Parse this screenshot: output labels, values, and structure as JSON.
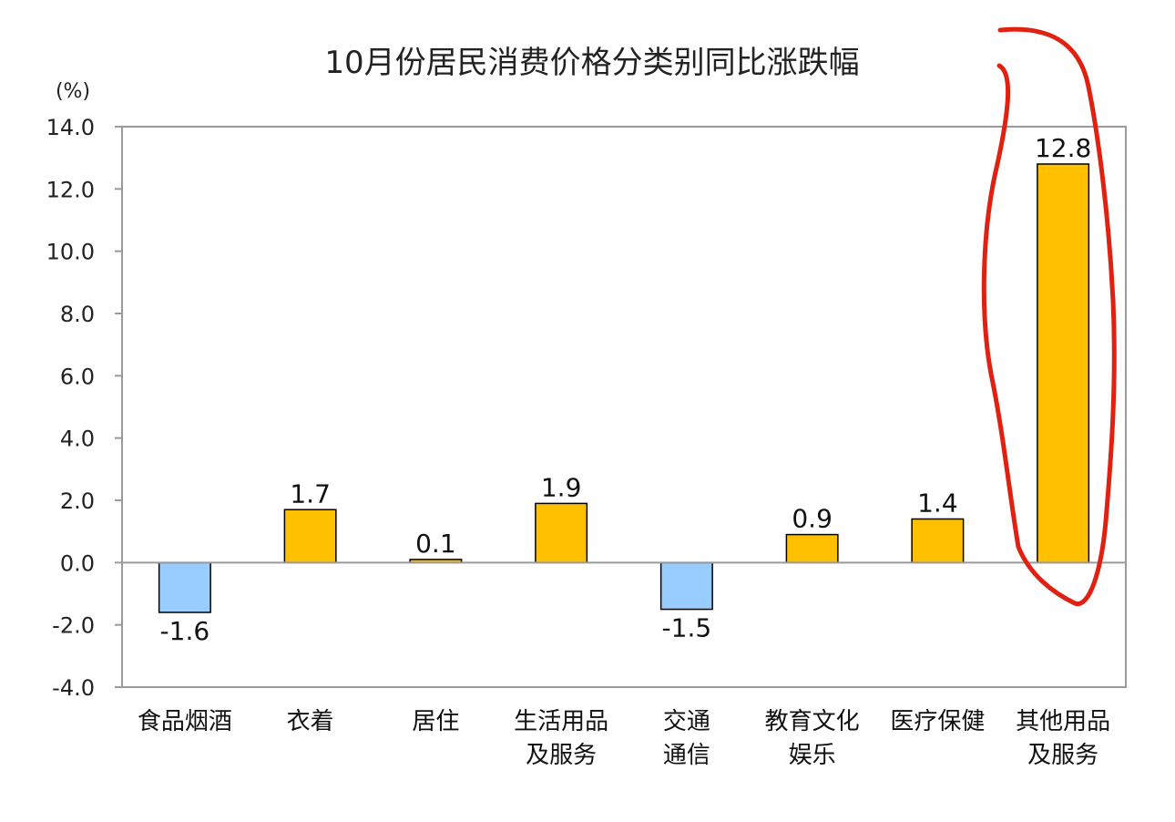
{
  "chart_data": {
    "type": "bar",
    "title": "10月份居民消费价格分类别同比涨跌幅",
    "unit_label": "(%)",
    "ylim": [
      -4.0,
      14.0
    ],
    "y_ticks": [
      "14.0",
      "12.0",
      "10.0",
      "8.0",
      "6.0",
      "4.0",
      "2.0",
      "0.0",
      "-2.0",
      "-4.0"
    ],
    "grid": false,
    "categories": [
      [
        "食品烟酒"
      ],
      [
        "衣着"
      ],
      [
        "居住"
      ],
      [
        "生活用品",
        "及服务"
      ],
      [
        "交通",
        "通信"
      ],
      [
        "教育文化",
        "娱乐"
      ],
      [
        "医疗保健"
      ],
      [
        "其他用品",
        "及服务"
      ]
    ],
    "values": [
      -1.6,
      1.7,
      0.1,
      1.9,
      -1.5,
      0.9,
      1.4,
      12.8
    ],
    "value_labels": [
      "-1.6",
      "1.7",
      "0.1",
      "1.9",
      "-1.5",
      "0.9",
      "1.4",
      "12.8"
    ],
    "colors": {
      "positive": "#FFC000",
      "negative": "#99CCFF",
      "outline": "#000000",
      "annotation": "#E02010"
    },
    "annotation": "red freehand circle around 其他用品及服务 bar"
  }
}
